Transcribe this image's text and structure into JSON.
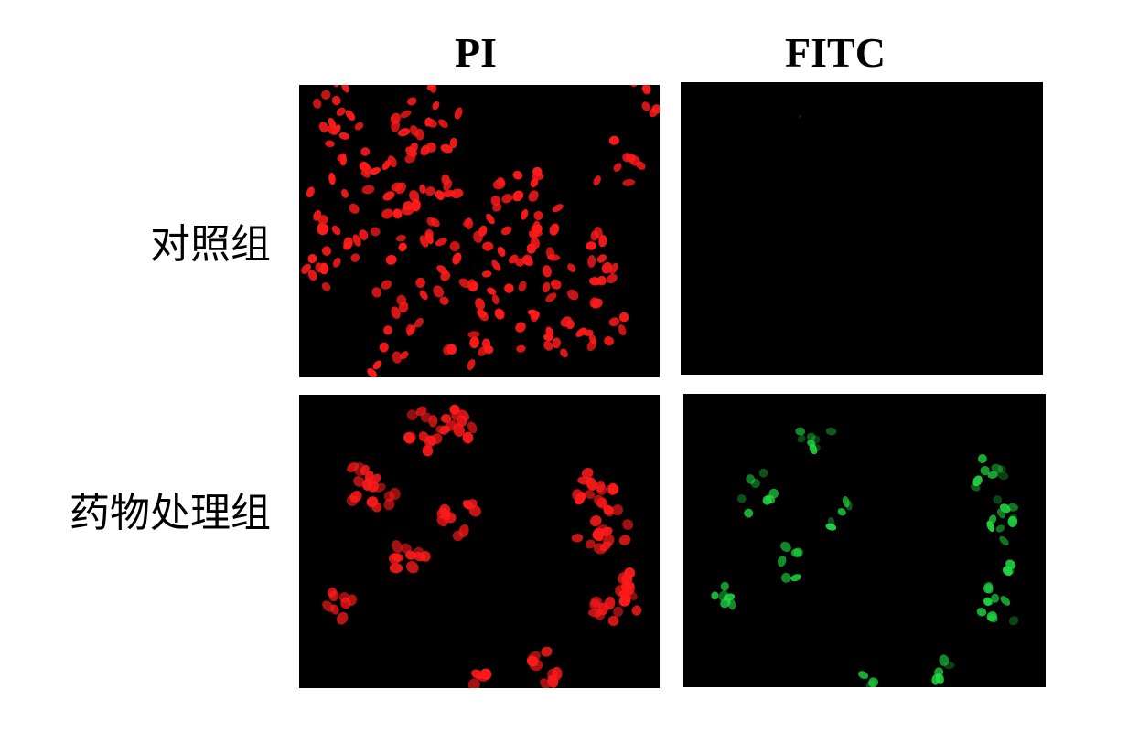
{
  "columns": {
    "pi": "PI",
    "fitc": "FITC"
  },
  "rows": {
    "control": "对照组",
    "treated": "药物处理组"
  },
  "colors": {
    "pi_stain": "#ff1a1a",
    "fitc_stain": "#22dd44",
    "background": "#000000"
  }
}
